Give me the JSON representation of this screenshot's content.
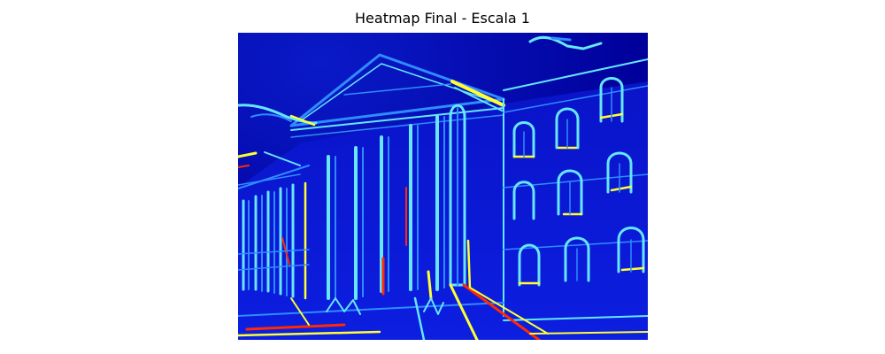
{
  "figure": {
    "title": "Heatmap Final - Escala 1",
    "colormap": "jet",
    "axes_visible": false
  },
  "colors": {
    "background": "#ffffff",
    "low": "#00007f",
    "base": "#0a1ad8",
    "mid": "#2f8cff",
    "edge": "#66e6ff",
    "high": "#ffff33",
    "peak": "#ff2a00"
  }
}
